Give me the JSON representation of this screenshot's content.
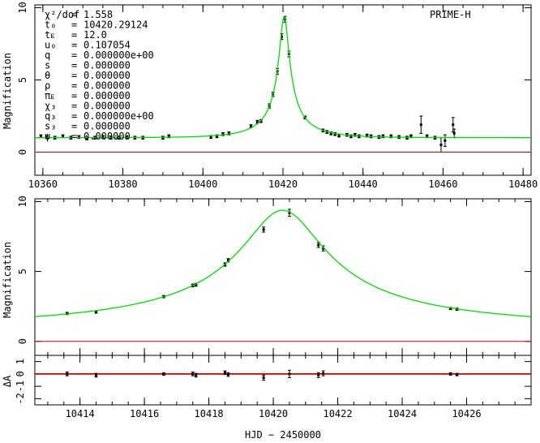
{
  "colors": {
    "model": "#00dd00",
    "baseline": "#cc0000",
    "points": "#000000"
  },
  "xaxis_title": "HJD − 2450000",
  "chart_data": [
    {
      "type": "scatter",
      "panel": "overview",
      "dataset_label": "PRIME-H",
      "ylabel": "Magnification",
      "xlim": [
        10358,
        10482
      ],
      "ylim": [
        -1.6,
        10.2
      ],
      "xticks": [
        10360,
        10380,
        10400,
        10420,
        10440,
        10460,
        10480
      ],
      "yticks": [
        0,
        5,
        10
      ],
      "baseline": 0,
      "params": [
        {
          "name": "χ²/dof",
          "sep": "=",
          "value": "1.558"
        },
        {
          "name": "t₀",
          "sep": "=",
          "value": "10420.29124"
        },
        {
          "name": "tᴇ",
          "sep": "=",
          "value": "12.0"
        },
        {
          "name": "u₀",
          "sep": "=",
          "value": "0.107054"
        },
        {
          "name": "q",
          "sep": "=",
          "value": "0.000000e+00"
        },
        {
          "name": "s",
          "sep": "=",
          "value": "0.000000"
        },
        {
          "name": "θ",
          "sep": "=",
          "value": "0.000000"
        },
        {
          "name": "ρ",
          "sep": "=",
          "value": "0.000000"
        },
        {
          "name": "πᴇ",
          "sep": "=",
          "value": "0.000000"
        },
        {
          "name": "χ₃",
          "sep": "=",
          "value": "0.000000"
        },
        {
          "name": "q₃",
          "sep": "=",
          "value": "0.000000e+00"
        },
        {
          "name": "s₃",
          "sep": "=",
          "value": "0.000000"
        },
        {
          "name": "ψ",
          "sep": "=",
          "value": "0.000000"
        }
      ],
      "model": {
        "t0": 10420.29124,
        "tE": 12.0,
        "u0": 0.107054
      },
      "points": [
        {
          "x": 10359.5,
          "y": 1.1,
          "err": 0.1
        },
        {
          "x": 10361,
          "y": 1.05,
          "err": 0.1
        },
        {
          "x": 10363,
          "y": 1.0,
          "err": 0.1
        },
        {
          "x": 10365,
          "y": 1.1,
          "err": 0.1
        },
        {
          "x": 10367,
          "y": 1.0,
          "err": 0.1
        },
        {
          "x": 10369,
          "y": 1.05,
          "err": 0.1
        },
        {
          "x": 10371,
          "y": 0.95,
          "err": 0.1
        },
        {
          "x": 10373,
          "y": 1.0,
          "err": 0.1
        },
        {
          "x": 10375,
          "y": 1.05,
          "err": 0.1
        },
        {
          "x": 10377,
          "y": 1.0,
          "err": 0.1
        },
        {
          "x": 10379,
          "y": 1.0,
          "err": 0.1
        },
        {
          "x": 10381,
          "y": 1.02,
          "err": 0.1
        },
        {
          "x": 10383,
          "y": 1.0,
          "err": 0.1
        },
        {
          "x": 10385,
          "y": 1.0,
          "err": 0.1
        },
        {
          "x": 10390,
          "y": 1.0,
          "err": 0.1
        },
        {
          "x": 10391.5,
          "y": 1.1,
          "err": 0.1
        },
        {
          "x": 10402,
          "y": 1.05,
          "err": 0.1
        },
        {
          "x": 10403.5,
          "y": 1.1,
          "err": 0.1
        },
        {
          "x": 10405,
          "y": 1.25,
          "err": 0.1
        },
        {
          "x": 10406.5,
          "y": 1.3,
          "err": 0.1
        },
        {
          "x": 10412,
          "y": 1.8,
          "err": 0.1
        },
        {
          "x": 10413.6,
          "y": 2.1,
          "err": 0.1
        },
        {
          "x": 10414.5,
          "y": 2.15,
          "err": 0.1
        },
        {
          "x": 10416.6,
          "y": 3.2,
          "err": 0.15
        },
        {
          "x": 10417.5,
          "y": 4.0,
          "err": 0.15
        },
        {
          "x": 10418.6,
          "y": 5.6,
          "err": 0.2
        },
        {
          "x": 10419.7,
          "y": 8.0,
          "err": 0.2
        },
        {
          "x": 10420.5,
          "y": 9.2,
          "err": 0.2
        },
        {
          "x": 10421.5,
          "y": 6.8,
          "err": 0.2
        },
        {
          "x": 10425.5,
          "y": 2.4,
          "err": 0.1
        },
        {
          "x": 10430,
          "y": 1.5,
          "err": 0.1
        },
        {
          "x": 10431,
          "y": 1.4,
          "err": 0.1
        },
        {
          "x": 10432,
          "y": 1.3,
          "err": 0.1
        },
        {
          "x": 10433,
          "y": 1.25,
          "err": 0.1
        },
        {
          "x": 10434,
          "y": 1.15,
          "err": 0.1
        },
        {
          "x": 10436,
          "y": 1.2,
          "err": 0.1
        },
        {
          "x": 10437,
          "y": 1.1,
          "err": 0.1
        },
        {
          "x": 10438,
          "y": 1.2,
          "err": 0.1
        },
        {
          "x": 10439,
          "y": 1.1,
          "err": 0.1
        },
        {
          "x": 10441,
          "y": 1.15,
          "err": 0.1
        },
        {
          "x": 10442,
          "y": 1.1,
          "err": 0.1
        },
        {
          "x": 10444,
          "y": 1.05,
          "err": 0.1
        },
        {
          "x": 10445,
          "y": 1.1,
          "err": 0.1
        },
        {
          "x": 10447,
          "y": 1.1,
          "err": 0.1
        },
        {
          "x": 10449,
          "y": 1.05,
          "err": 0.1
        },
        {
          "x": 10451,
          "y": 1.0,
          "err": 0.1
        },
        {
          "x": 10452,
          "y": 1.1,
          "err": 0.1
        },
        {
          "x": 10454.5,
          "y": 1.9,
          "err": 0.6
        },
        {
          "x": 10456,
          "y": 1.1,
          "err": 0.1
        },
        {
          "x": 10458,
          "y": 1.0,
          "err": 0.1
        },
        {
          "x": 10459.5,
          "y": 0.5,
          "err": 0.5
        },
        {
          "x": 10460.5,
          "y": 0.8,
          "err": 0.4
        },
        {
          "x": 10462.5,
          "y": 1.9,
          "err": 0.5
        },
        {
          "x": 10462.8,
          "y": 1.3,
          "err": 0.3
        }
      ]
    },
    {
      "type": "scatter",
      "panel": "zoom",
      "ylabel": "Magnification",
      "xlim": [
        10412.6,
        10428.0
      ],
      "ylim": [
        -1.0,
        10.2
      ],
      "yticks": [
        0,
        5,
        10
      ],
      "baseline": 0,
      "points": [
        {
          "x": 10413.6,
          "y": 2.0,
          "err": 0.08
        },
        {
          "x": 10414.5,
          "y": 2.1,
          "err": 0.08
        },
        {
          "x": 10416.6,
          "y": 3.2,
          "err": 0.08
        },
        {
          "x": 10417.5,
          "y": 4.0,
          "err": 0.1
        },
        {
          "x": 10417.6,
          "y": 4.05,
          "err": 0.1
        },
        {
          "x": 10418.5,
          "y": 5.5,
          "err": 0.12
        },
        {
          "x": 10418.6,
          "y": 5.8,
          "err": 0.12
        },
        {
          "x": 10419.7,
          "y": 8.0,
          "err": 0.18
        },
        {
          "x": 10420.5,
          "y": 9.2,
          "err": 0.25
        },
        {
          "x": 10421.4,
          "y": 6.9,
          "err": 0.18
        },
        {
          "x": 10421.55,
          "y": 6.65,
          "err": 0.18
        },
        {
          "x": 10425.5,
          "y": 2.35,
          "err": 0.08
        },
        {
          "x": 10425.7,
          "y": 2.3,
          "err": 0.08
        }
      ]
    },
    {
      "type": "scatter",
      "panel": "residuals",
      "ylabel": "ΔA",
      "xlim": [
        10412.6,
        10428.0
      ],
      "ylim": [
        -2.5,
        1.5
      ],
      "xticks": [
        10414,
        10416,
        10418,
        10420,
        10422,
        10424,
        10426
      ],
      "yticks": [
        -2,
        -1,
        0,
        1
      ],
      "baseline": 0,
      "points": [
        {
          "x": 10413.6,
          "y": 0.0,
          "err": 0.15
        },
        {
          "x": 10414.5,
          "y": -0.1,
          "err": 0.15
        },
        {
          "x": 10416.6,
          "y": 0.0,
          "err": 0.1
        },
        {
          "x": 10417.5,
          "y": 0.0,
          "err": 0.15
        },
        {
          "x": 10417.6,
          "y": -0.1,
          "err": 0.15
        },
        {
          "x": 10418.5,
          "y": 0.1,
          "err": 0.15
        },
        {
          "x": 10418.6,
          "y": -0.05,
          "err": 0.15
        },
        {
          "x": 10419.7,
          "y": -0.3,
          "err": 0.2
        },
        {
          "x": 10420.5,
          "y": 0.0,
          "err": 0.3
        },
        {
          "x": 10421.4,
          "y": -0.1,
          "err": 0.2
        },
        {
          "x": 10421.55,
          "y": 0.05,
          "err": 0.2
        },
        {
          "x": 10425.5,
          "y": 0.0,
          "err": 0.1
        },
        {
          "x": 10425.7,
          "y": -0.05,
          "err": 0.1
        }
      ]
    }
  ]
}
